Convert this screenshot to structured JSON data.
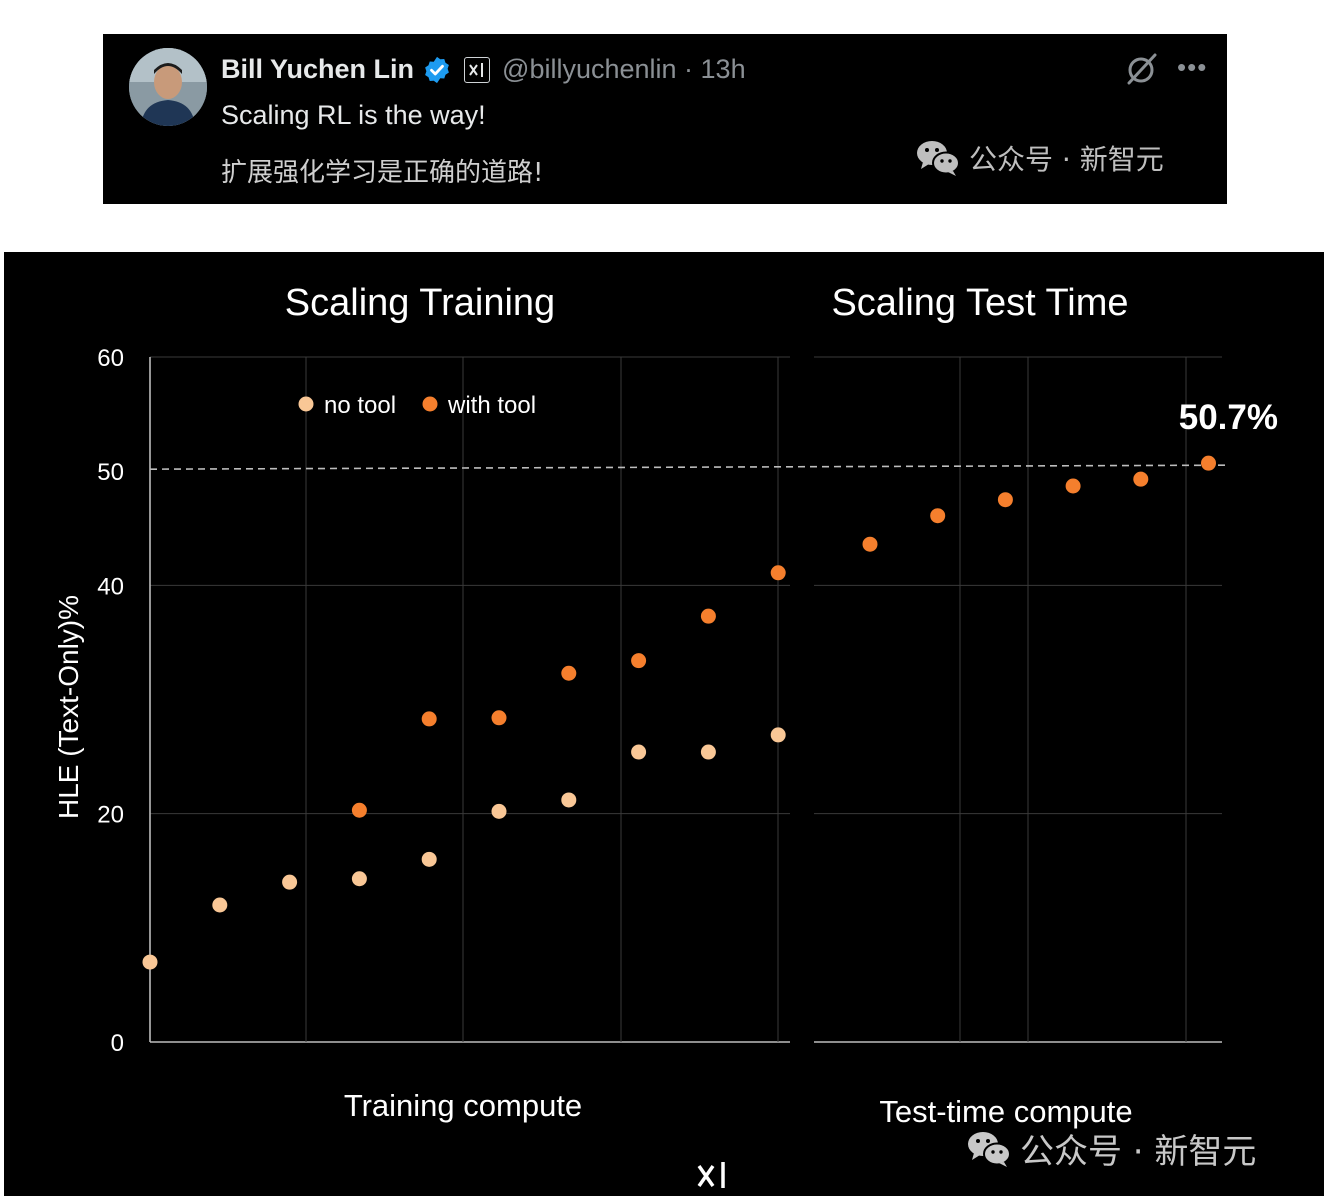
{
  "tweet": {
    "author_name": "Bill Yuchen Lin",
    "handle_line": "@billyuchenlin · 13h",
    "text": "Scaling RL is the way!",
    "translation": "扩展强化学习是正确的道路!",
    "icons": [
      "avatar",
      "verified-icon",
      "xai-badge-icon",
      "grok-icon",
      "more-icon"
    ]
  },
  "watermark": {
    "text": "公众号 · 新智元",
    "icon": "wechat-icon"
  },
  "chart_data": {
    "type": "scatter",
    "ylabel": "HLE (Text-Only)%",
    "ylim": [
      0,
      60
    ],
    "yticks": [
      "0",
      "20",
      "40",
      "50",
      "60"
    ],
    "reference_line": 50,
    "grid": true,
    "legend_placement": "top-left",
    "panels": [
      {
        "title": "Scaling Training",
        "xlabel": "Training compute",
        "series": [
          {
            "name": "no tool",
            "color": "#f9c796",
            "x": [
              0,
              1,
              2,
              3,
              4,
              5,
              6,
              7,
              8,
              9
            ],
            "y": [
              7,
              12,
              14,
              14.3,
              16,
              20.2,
              21.2,
              25.4,
              25.4,
              26.9
            ]
          },
          {
            "name": "with tool",
            "color": "#f57f2d",
            "x": [
              3,
              4,
              5,
              6,
              7,
              8,
              9
            ],
            "y": [
              20.3,
              28.3,
              28.4,
              32.3,
              33.4,
              37.3,
              41.1
            ]
          }
        ]
      },
      {
        "title": "Scaling Test Time",
        "xlabel": "Test-time compute",
        "series": [
          {
            "name": "with tool",
            "color": "#f57f2d",
            "x": [
              0,
              1,
              2,
              3,
              4,
              5
            ],
            "y": [
              43.6,
              46.1,
              47.5,
              48.7,
              49.3,
              50.7
            ]
          }
        ],
        "annotation": "50.7%"
      }
    ]
  },
  "footer": {
    "logo_icon": "xai-logo-icon"
  }
}
